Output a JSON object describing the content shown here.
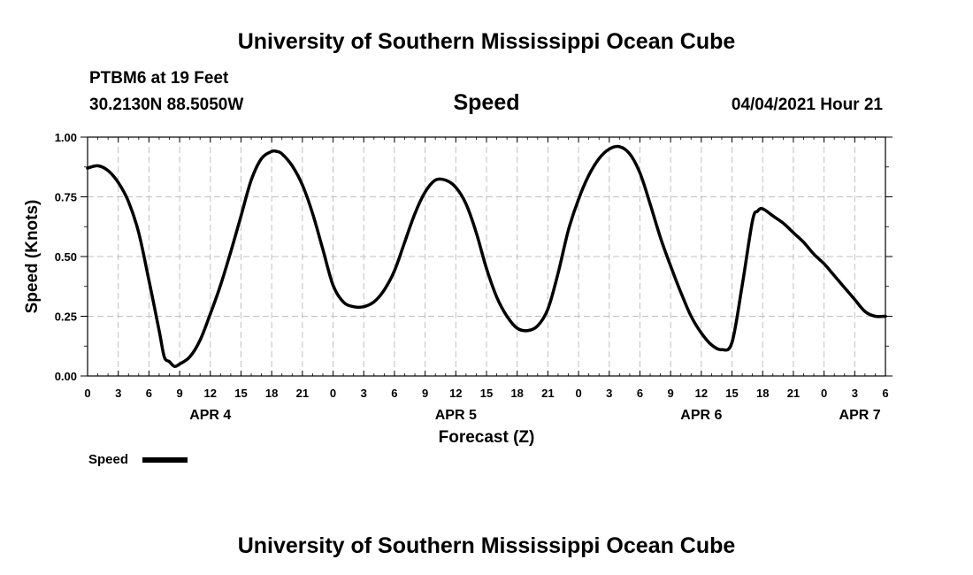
{
  "header": {
    "title_top": "University of Southern Mississippi Ocean Cube",
    "title_bottom": "University of Southern Mississippi Ocean Cube",
    "station": "PTBM6 at 19 Feet",
    "coordinates": "30.2130N  88.5050W",
    "datetime": "04/04/2021 Hour 21"
  },
  "chart_data": {
    "type": "line",
    "title": "Speed",
    "xlabel": "Forecast (Z)",
    "ylabel": "Speed (Knots)",
    "xlim": [
      0,
      78
    ],
    "ylim": [
      0,
      1
    ],
    "y_ticks": [
      "0.00",
      "0.25",
      "0.50",
      "0.75",
      "1.00"
    ],
    "x_tick_hours": [
      0,
      3,
      6,
      9,
      12,
      15,
      18,
      21,
      24,
      27,
      30,
      33,
      36,
      39,
      42,
      45,
      48,
      51,
      54,
      57,
      60,
      63,
      66,
      69,
      72,
      75,
      78
    ],
    "x_tick_labels": [
      "0",
      "3",
      "6",
      "9",
      "12",
      "15",
      "18",
      "21",
      "0",
      "3",
      "6",
      "9",
      "12",
      "15",
      "18",
      "21",
      "0",
      "3",
      "6",
      "9",
      "12",
      "15",
      "18",
      "21",
      "0",
      "3",
      "6"
    ],
    "day_labels": [
      {
        "hour": 12,
        "text": "APR 4"
      },
      {
        "hour": 36,
        "text": "APR 5"
      },
      {
        "hour": 60,
        "text": "APR 6"
      },
      {
        "hour": 75.5,
        "text": "APR 7"
      }
    ],
    "grid": true,
    "legend": {
      "label": "Speed",
      "position": "bottom-left"
    },
    "series": [
      {
        "name": "Speed",
        "color": "#000000",
        "x": [
          0,
          1,
          2,
          3,
          4,
          5,
          6,
          7,
          7.5,
          8,
          8.5,
          9,
          10,
          11,
          12,
          13,
          14,
          15,
          16,
          17,
          18,
          18.5,
          19,
          20,
          21,
          22,
          23,
          24,
          25,
          26,
          27,
          28,
          29,
          30,
          31,
          32,
          33,
          34,
          35,
          36,
          37,
          38,
          39,
          40,
          41,
          42,
          43,
          44,
          45,
          46,
          47,
          48,
          49,
          50,
          51,
          52,
          53,
          54,
          55,
          56,
          57,
          58,
          59,
          60,
          61,
          62,
          63,
          64,
          65,
          65.5,
          66,
          67,
          68,
          69,
          70,
          71,
          72,
          73,
          74,
          75,
          76,
          77,
          78
        ],
        "y": [
          0.87,
          0.88,
          0.86,
          0.81,
          0.73,
          0.6,
          0.4,
          0.19,
          0.08,
          0.06,
          0.04,
          0.05,
          0.08,
          0.15,
          0.26,
          0.38,
          0.52,
          0.67,
          0.82,
          0.91,
          0.94,
          0.94,
          0.93,
          0.88,
          0.8,
          0.68,
          0.53,
          0.38,
          0.31,
          0.29,
          0.29,
          0.31,
          0.36,
          0.44,
          0.56,
          0.68,
          0.77,
          0.82,
          0.82,
          0.79,
          0.72,
          0.6,
          0.45,
          0.33,
          0.25,
          0.2,
          0.19,
          0.21,
          0.28,
          0.43,
          0.61,
          0.74,
          0.84,
          0.91,
          0.95,
          0.96,
          0.93,
          0.85,
          0.72,
          0.58,
          0.46,
          0.35,
          0.25,
          0.18,
          0.13,
          0.11,
          0.14,
          0.38,
          0.65,
          0.69,
          0.7,
          0.67,
          0.64,
          0.6,
          0.56,
          0.51,
          0.47,
          0.42,
          0.37,
          0.32,
          0.27,
          0.25,
          0.25
        ]
      }
    ]
  }
}
